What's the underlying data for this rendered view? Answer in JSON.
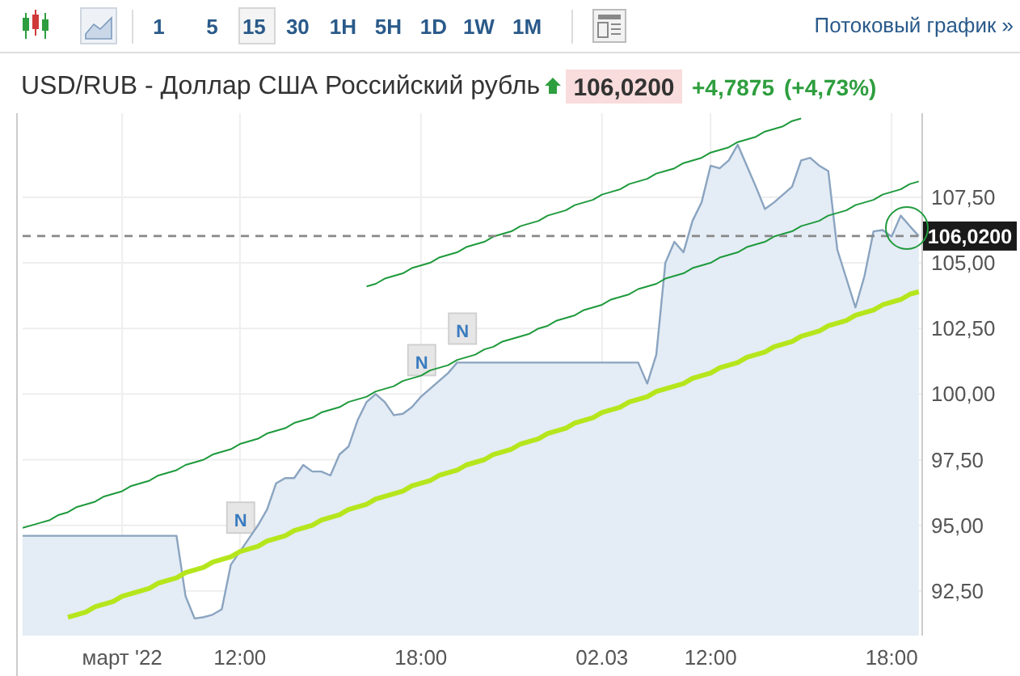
{
  "chart_data": {
    "type": "area",
    "title": "USD/RUB - Доллар США Российский рубль",
    "categories": [
      null,
      null,
      null,
      null,
      null,
      null,
      null,
      null,
      null,
      null,
      null,
      "март '22",
      null,
      null,
      null,
      null,
      null,
      null,
      null,
      null,
      null,
      null,
      null,
      null,
      "12:00",
      null,
      null,
      null,
      null,
      null,
      null,
      null,
      null,
      null,
      null,
      null,
      null,
      null,
      null,
      null,
      null,
      null,
      null,
      null,
      "18:00",
      null,
      null,
      null,
      null,
      null,
      null,
      null,
      null,
      null,
      null,
      null,
      null,
      null,
      null,
      null,
      null,
      null,
      null,
      null,
      "02.03",
      null,
      null,
      null,
      null,
      null,
      null,
      null,
      null,
      null,
      null,
      null,
      "12:00",
      null,
      null,
      null,
      null,
      null,
      null,
      null,
      null,
      null,
      null,
      null,
      null,
      null,
      null,
      null,
      null,
      null,
      null,
      null,
      "18:00",
      null,
      null,
      null
    ],
    "series": [
      {
        "type": "area",
        "color": "#8aa4c0",
        "values": [
          94.6,
          94.6,
          94.6,
          94.6,
          94.6,
          94.6,
          94.6,
          94.6,
          94.6,
          94.6,
          94.6,
          94.6,
          94.6,
          94.6,
          94.6,
          94.6,
          94.6,
          94.6,
          92.3,
          91.45,
          91.5,
          91.6,
          91.8,
          93.5,
          94.0,
          94.5,
          95.0,
          95.6,
          96.6,
          96.8,
          96.8,
          97.3,
          97.05,
          97.05,
          96.9,
          97.7,
          98.0,
          99.0,
          99.7,
          100.0,
          99.7,
          99.2,
          99.25,
          99.5,
          99.9,
          100.2,
          100.5,
          100.8,
          101.2,
          101.2,
          101.2,
          101.2,
          101.2,
          101.2,
          101.2,
          101.2,
          101.2,
          101.2,
          101.2,
          101.2,
          101.2,
          101.2,
          101.2,
          101.2,
          101.2,
          101.2,
          101.2,
          101.2,
          101.2,
          100.4,
          101.5,
          105.0,
          105.8,
          105.4,
          106.6,
          107.3,
          108.7,
          108.6,
          108.9,
          109.5,
          108.7,
          107.9,
          107.05,
          107.3,
          107.6,
          107.9,
          108.9,
          109.0,
          108.7,
          108.5,
          105.5,
          104.4,
          103.3,
          104.5,
          106.2,
          106.25,
          106.0,
          106.8,
          106.4,
          106.02
        ]
      },
      {
        "type": "line",
        "color": "#b5e61d",
        "values": [
          null,
          null,
          null,
          null,
          null,
          91.5,
          91.6,
          91.7,
          91.9,
          92.0,
          92.1,
          92.3,
          92.4,
          92.5,
          92.6,
          92.8,
          92.9,
          93.0,
          93.2,
          93.3,
          93.4,
          93.6,
          93.7,
          93.8,
          94.0,
          94.1,
          94.2,
          94.4,
          94.5,
          94.6,
          94.8,
          94.9,
          95.0,
          95.2,
          95.3,
          95.4,
          95.6,
          95.7,
          95.8,
          96.0,
          96.1,
          96.2,
          96.3,
          96.5,
          96.6,
          96.7,
          96.9,
          97.0,
          97.1,
          97.3,
          97.4,
          97.5,
          97.7,
          97.8,
          97.9,
          98.1,
          98.2,
          98.3,
          98.5,
          98.6,
          98.7,
          98.9,
          99.0,
          99.1,
          99.3,
          99.4,
          99.5,
          99.7,
          99.8,
          99.9,
          100.1,
          100.2,
          100.3,
          100.4,
          100.6,
          100.7,
          100.8,
          101.0,
          101.1,
          101.2,
          101.4,
          101.5,
          101.6,
          101.8,
          101.9,
          102.0,
          102.2,
          102.3,
          102.4,
          102.6,
          102.7,
          102.8,
          103.0,
          103.1,
          103.2,
          103.4,
          103.5,
          103.6,
          103.8,
          103.9
        ]
      },
      {
        "type": "line",
        "color": "#1e9a3c",
        "values": [
          94.9,
          95.0,
          95.1,
          95.2,
          95.4,
          95.5,
          95.7,
          95.8,
          95.9,
          96.1,
          96.2,
          96.3,
          96.5,
          96.6,
          96.7,
          96.9,
          97.0,
          97.1,
          97.3,
          97.4,
          97.5,
          97.7,
          97.8,
          97.9,
          98.1,
          98.2,
          98.3,
          98.5,
          98.6,
          98.7,
          98.9,
          99.0,
          99.1,
          99.3,
          99.4,
          99.5,
          99.7,
          99.8,
          99.9,
          100.1,
          100.2,
          100.3,
          100.5,
          100.6,
          100.7,
          100.9,
          101.0,
          101.1,
          101.3,
          101.4,
          101.5,
          101.7,
          101.8,
          102.0,
          102.1,
          102.2,
          102.3,
          102.5,
          102.6,
          102.8,
          102.9,
          103.0,
          103.2,
          103.3,
          103.4,
          103.6,
          103.7,
          103.8,
          104.0,
          104.1,
          104.2,
          104.4,
          104.5,
          104.6,
          104.8,
          104.9,
          105.0,
          105.2,
          105.3,
          105.4,
          105.6,
          105.7,
          105.8,
          106.0,
          106.1,
          106.2,
          106.4,
          106.5,
          106.6,
          106.8,
          106.9,
          107.0,
          107.2,
          107.3,
          107.4,
          107.6,
          107.7,
          107.8,
          108.0,
          108.1
        ]
      },
      {
        "type": "line",
        "color": "#1e9a3c",
        "values": [
          null,
          null,
          null,
          null,
          null,
          null,
          null,
          null,
          null,
          null,
          null,
          null,
          null,
          null,
          null,
          null,
          null,
          null,
          null,
          null,
          null,
          null,
          null,
          null,
          null,
          null,
          null,
          null,
          null,
          null,
          null,
          null,
          null,
          null,
          null,
          null,
          null,
          null,
          104.1,
          104.2,
          104.4,
          104.5,
          104.6,
          104.8,
          104.9,
          105.0,
          105.2,
          105.3,
          105.4,
          105.6,
          105.7,
          105.8,
          106.0,
          106.1,
          106.2,
          106.4,
          106.5,
          106.6,
          106.8,
          106.9,
          107.0,
          107.2,
          107.3,
          107.4,
          107.6,
          107.7,
          107.8,
          108.0,
          108.1,
          108.2,
          108.4,
          108.5,
          108.6,
          108.8,
          108.9,
          109.0,
          109.2,
          109.3,
          109.4,
          109.6,
          109.7,
          109.8,
          110.0,
          110.1,
          110.2,
          110.4,
          110.5,
          null,
          null,
          null,
          null,
          null,
          null,
          null,
          null,
          null,
          null,
          null,
          null,
          null
        ]
      }
    ],
    "ylim": [
      90.8,
      110.7
    ],
    "yticks": [
      {
        "value": 92.5,
        "label": "92,50"
      },
      {
        "value": 95,
        "label": "95,00"
      },
      {
        "value": 97.5,
        "label": "97,50"
      },
      {
        "value": 100,
        "label": "100,00"
      },
      {
        "value": 102.5,
        "label": "102,50"
      },
      {
        "value": 105,
        "label": "105,00"
      },
      {
        "value": 107.5,
        "label": "107,50"
      }
    ],
    "grid": true,
    "ref_lines": [
      {
        "axis": "y",
        "value": 106.02,
        "label": "106,0200",
        "color": "#888888",
        "line_style": "dashed"
      }
    ],
    "annotations": [
      "1 5 15 30 1H 5H 1D 1W 1M",
      "Потоковый график »",
      "106,0200",
      "+4,7875",
      "(+4,73%)",
      {
        "text": "N",
        "y": 95.2
      },
      {
        "text": "N",
        "y": 101.2
      },
      {
        "text": "N",
        "y": 102.4
      }
    ]
  }
}
